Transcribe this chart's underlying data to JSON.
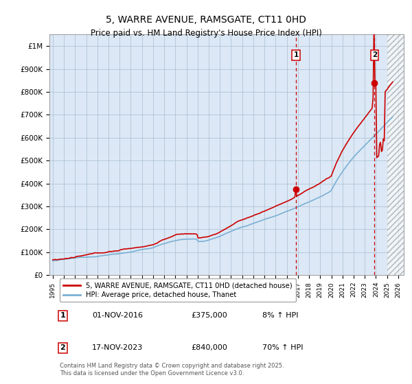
{
  "title": "5, WARRE AVENUE, RAMSGATE, CT11 0HD",
  "subtitle": "Price paid vs. HM Land Registry's House Price Index (HPI)",
  "title_fontsize": 10,
  "subtitle_fontsize": 8.5,
  "yticks": [
    0,
    100000,
    200000,
    300000,
    400000,
    500000,
    600000,
    700000,
    800000,
    900000,
    1000000
  ],
  "ytick_labels": [
    "£0",
    "£100K",
    "£200K",
    "£300K",
    "£400K",
    "£500K",
    "£600K",
    "£700K",
    "£800K",
    "£900K",
    "£1M"
  ],
  "legend_line1": "5, WARRE AVENUE, RAMSGATE, CT11 0HD (detached house)",
  "legend_line2": "HPI: Average price, detached house, Thanet",
  "line1_color": "#cc0000",
  "line2_color": "#7ab0d4",
  "point1_date": "01-NOV-2016",
  "point1_price": 375000,
  "point1_label": "8% ↑ HPI",
  "point1_x": 2016.83,
  "point2_date": "17-NOV-2023",
  "point2_price": 840000,
  "point2_label": "70% ↑ HPI",
  "point2_x": 2023.88,
  "hatch_start": 2025.0,
  "footnote": "Contains HM Land Registry data © Crown copyright and database right 2025.\nThis data is licensed under the Open Government Licence v3.0.",
  "background_color": "#dce8f5",
  "grid_color": "#b0c4d8",
  "xmin": 1994.7,
  "xmax": 2026.5,
  "ylim": [
    0,
    1050000
  ]
}
